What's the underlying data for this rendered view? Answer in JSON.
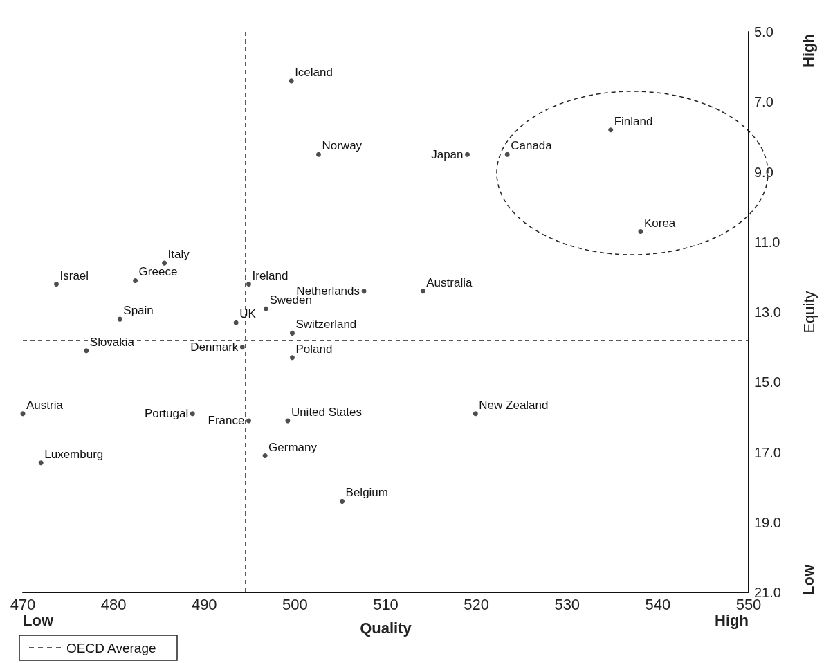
{
  "chart_data": {
    "type": "scatter",
    "xlabel": "Quality",
    "ylabel": "Equity",
    "x": [
      499.6,
      502.6,
      519.0,
      523.4,
      534.8,
      538.1,
      485.6,
      473.7,
      482.4,
      494.9,
      507.6,
      514.1,
      480.7,
      493.5,
      496.8,
      499.7,
      477.0,
      494.2,
      499.7,
      470.0,
      488.7,
      494.9,
      499.2,
      519.9,
      472.0,
      496.7,
      505.2
    ],
    "values": [
      6.4,
      8.5,
      8.5,
      8.5,
      7.8,
      10.7,
      11.6,
      12.2,
      12.1,
      12.2,
      12.4,
      12.4,
      13.2,
      13.3,
      12.9,
      13.6,
      14.1,
      14.0,
      14.3,
      15.9,
      15.9,
      16.1,
      16.1,
      15.9,
      17.3,
      17.1,
      18.4
    ],
    "color": "#222222",
    "marker": "circle",
    "grid": false,
    "legend": "bottom left",
    "xlim": [
      470,
      550
    ],
    "xticks": [
      470,
      480,
      490,
      500,
      510,
      520,
      530,
      540,
      550
    ],
    "ylim": [
      21,
      5
    ],
    "yticks": [
      {
        "value": 5,
        "label": "5.0"
      },
      {
        "value": 7,
        "label": "7.0"
      },
      {
        "value": 9,
        "label": "9.0"
      },
      {
        "value": 11,
        "label": "11.0"
      },
      {
        "value": 13,
        "label": "13.0"
      },
      {
        "value": 15,
        "label": "15.0"
      },
      {
        "value": 17,
        "label": "17.0"
      },
      {
        "value": 19,
        "label": "19.0"
      },
      {
        "value": 21,
        "label": "21.0"
      }
    ],
    "ref_lines": [
      {
        "axis": "x",
        "value": 494.5,
        "label": "OECD Average",
        "line_style": "dashed",
        "color": "#222222"
      },
      {
        "axis": "y",
        "value": 13.8,
        "line_style": "dashed",
        "color": "#222222"
      }
    ],
    "annotations": [
      "Low",
      "High",
      "High",
      "Low",
      {
        "text": "Iceland",
        "x": 499.6,
        "y": 6.4
      },
      {
        "text": "Norway",
        "x": 502.6,
        "y": 8.5
      },
      {
        "text": "Japan",
        "x": 519.0,
        "y": 8.5
      },
      {
        "text": "Canada",
        "x": 523.4,
        "y": 8.5
      },
      {
        "text": "Finland",
        "x": 534.8,
        "y": 7.8
      },
      {
        "text": "Korea",
        "x": 538.1,
        "y": 10.7
      },
      {
        "text": "Italy",
        "x": 485.6,
        "y": 11.6
      },
      {
        "text": "Israel",
        "x": 473.7,
        "y": 12.2
      },
      {
        "text": "Greece",
        "x": 482.4,
        "y": 12.1
      },
      {
        "text": "Ireland",
        "x": 494.9,
        "y": 12.2
      },
      {
        "text": "Netherlands",
        "x": 507.6,
        "y": 12.4
      },
      {
        "text": "Australia",
        "x": 514.1,
        "y": 12.4
      },
      {
        "text": "Spain",
        "x": 480.7,
        "y": 13.2
      },
      {
        "text": "UK",
        "x": 493.5,
        "y": 13.3
      },
      {
        "text": "Sweden",
        "x": 496.8,
        "y": 12.9
      },
      {
        "text": "Switzerland",
        "x": 499.7,
        "y": 13.6
      },
      {
        "text": "Slovakia",
        "x": 477.0,
        "y": 14.1
      },
      {
        "text": "Denmark",
        "x": 494.2,
        "y": 14.0
      },
      {
        "text": "Poland",
        "x": 499.7,
        "y": 14.3
      },
      {
        "text": "Austria",
        "x": 470.0,
        "y": 15.9
      },
      {
        "text": "Portugal",
        "x": 488.7,
        "y": 15.9
      },
      {
        "text": "France",
        "x": 494.9,
        "y": 16.1
      },
      {
        "text": "United States",
        "x": 499.2,
        "y": 16.1
      },
      {
        "text": "New Zealand",
        "x": 519.9,
        "y": 15.9
      },
      {
        "text": "Luxemburg",
        "x": 472.0,
        "y": 17.3
      },
      {
        "text": "Germany",
        "x": 496.7,
        "y": 17.1
      },
      {
        "text": "Belgium",
        "x": 505.2,
        "y": 18.4
      }
    ]
  }
}
